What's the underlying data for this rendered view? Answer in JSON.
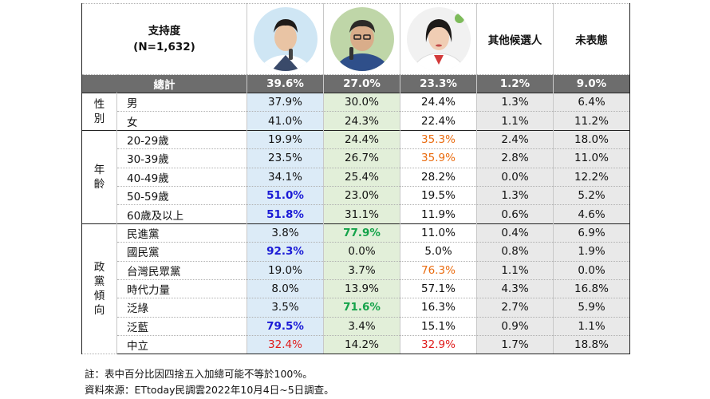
{
  "header": {
    "label_line1": "支持度",
    "label_line2": "(N=1,632)",
    "cand1_avatar": "candidate-1-photo",
    "cand2_avatar": "candidate-2-photo",
    "cand3_avatar": "candidate-3-photo",
    "other": "其他候選人",
    "undecided": "未表態"
  },
  "total": {
    "label": "總計",
    "values": [
      "39.6%",
      "27.0%",
      "23.3%",
      "1.2%",
      "9.0%"
    ]
  },
  "groups": {
    "gender": {
      "label": "性別",
      "chars": [
        "性",
        "別"
      ]
    },
    "age": {
      "label": "年齡",
      "chars": [
        "年",
        "齡"
      ]
    },
    "party": {
      "label": "政黨傾向",
      "chars": [
        "政",
        "黨",
        "傾",
        "向"
      ]
    }
  },
  "rows": [
    {
      "sub": "男",
      "values": [
        "37.9%",
        "30.0%",
        "24.4%",
        "1.3%",
        "6.4%"
      ]
    },
    {
      "sub": "女",
      "values": [
        "41.0%",
        "24.3%",
        "22.4%",
        "1.1%",
        "11.2%"
      ]
    },
    {
      "sub": "20-29歲",
      "values": [
        "19.9%",
        "24.4%",
        "35.3%",
        "2.4%",
        "18.0%"
      ]
    },
    {
      "sub": "30-39歲",
      "values": [
        "23.5%",
        "26.7%",
        "35.9%",
        "2.8%",
        "11.0%"
      ]
    },
    {
      "sub": "40-49歲",
      "values": [
        "34.1%",
        "25.4%",
        "28.2%",
        "0.0%",
        "12.2%"
      ]
    },
    {
      "sub": "50-59歲",
      "values": [
        "51.0%",
        "23.0%",
        "19.5%",
        "1.3%",
        "5.2%"
      ]
    },
    {
      "sub": "60歲及以上",
      "values": [
        "51.8%",
        "31.1%",
        "11.9%",
        "0.6%",
        "4.6%"
      ]
    },
    {
      "sub": "民進黨",
      "values": [
        "3.8%",
        "77.9%",
        "11.0%",
        "0.4%",
        "6.9%"
      ]
    },
    {
      "sub": "國民黨",
      "values": [
        "92.3%",
        "0.0%",
        "5.0%",
        "0.8%",
        "1.9%"
      ]
    },
    {
      "sub": "台灣民眾黨",
      "values": [
        "19.0%",
        "3.7%",
        "76.3%",
        "1.1%",
        "0.0%"
      ]
    },
    {
      "sub": "時代力量",
      "values": [
        "8.0%",
        "13.9%",
        "57.1%",
        "4.3%",
        "16.8%"
      ]
    },
    {
      "sub": "泛綠",
      "values": [
        "3.5%",
        "71.6%",
        "16.3%",
        "2.7%",
        "5.9%"
      ]
    },
    {
      "sub": "泛藍",
      "values": [
        "79.5%",
        "3.4%",
        "15.1%",
        "0.9%",
        "1.1%"
      ]
    },
    {
      "sub": "中立",
      "values": [
        "32.4%",
        "14.2%",
        "32.9%",
        "1.7%",
        "18.8%"
      ]
    }
  ],
  "highlights": {
    "blue": "#1a1ad6",
    "green": "#15a34a",
    "orange": "#ea6c10",
    "red": "#e01b1b"
  },
  "notes": {
    "note": "註：表中百分比因四捨五入加總可能不等於100%。",
    "source": "資料來源：ETtoday民調雲2022年10月4日~5日調查。"
  }
}
